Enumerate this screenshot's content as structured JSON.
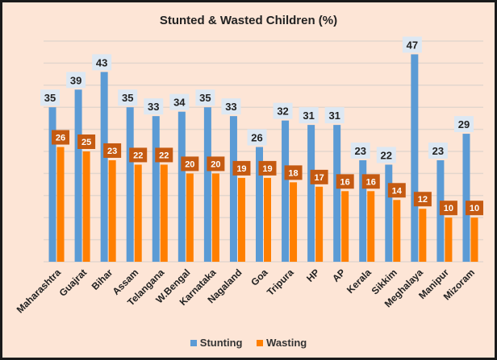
{
  "chart_data": {
    "type": "bar",
    "title": "Stunted & Wasted Children (%)",
    "categories": [
      "Maharashtra",
      "Guajrat",
      "Bihar",
      "Assam",
      "Telangana",
      "W.Bengal",
      "Karnataka",
      "Nagaland",
      "Goa",
      "Tripura",
      "HP",
      "AP",
      "Kerala",
      "Sikkim",
      "Meghalaya",
      "Manipur",
      "Mizoram"
    ],
    "series": [
      {
        "name": "Stunting",
        "color": "#5b9bd5",
        "values": [
          35,
          39,
          43,
          35,
          33,
          34,
          35,
          33,
          26,
          32,
          31,
          31,
          23,
          22,
          47,
          23,
          29
        ]
      },
      {
        "name": "Wasting",
        "color": "#ff7f00",
        "values": [
          26,
          25,
          23,
          22,
          22,
          20,
          20,
          19,
          19,
          18,
          17,
          16,
          16,
          14,
          12,
          10,
          10
        ]
      }
    ],
    "ylim": [
      0,
      50
    ],
    "grid": true,
    "legend": "bottom",
    "colors": {
      "background": "#fde5d6",
      "stunting_label_bg": "#dde8f3",
      "wasting_label_bg": "#c55a11",
      "grid": "#e3d6cd"
    }
  }
}
